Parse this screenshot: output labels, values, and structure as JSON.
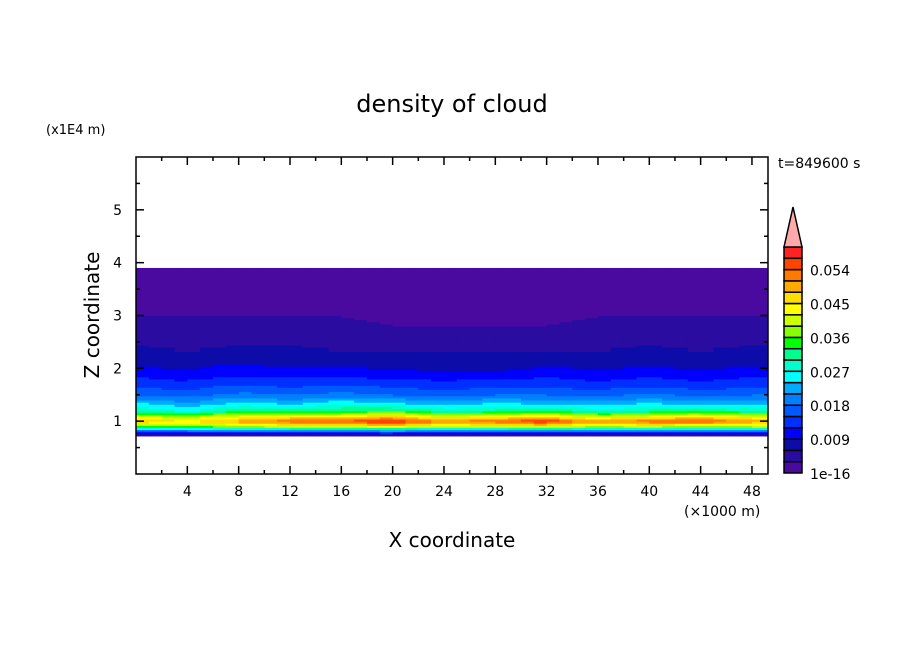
{
  "chart_data": {
    "type": "heatmap",
    "title": "density of cloud",
    "xlabel": "X coordinate",
    "ylabel": "Z coordinate",
    "x_unit": "(×1000 m)",
    "y_unit": "(x1E4 m)",
    "time_label": "t=849600 s",
    "xlim": [
      0,
      49.25
    ],
    "ylim": [
      0,
      6
    ],
    "x_ticks": [
      4,
      8,
      12,
      16,
      20,
      24,
      28,
      32,
      36,
      40,
      44,
      48
    ],
    "y_ticks": [
      1,
      2,
      3,
      4,
      5
    ],
    "colorbar": {
      "levels": [
        1e-16,
        0.003,
        0.006,
        0.009,
        0.012,
        0.015,
        0.018,
        0.021,
        0.024,
        0.027,
        0.03,
        0.033,
        0.036,
        0.039,
        0.042,
        0.045,
        0.048,
        0.051,
        0.054,
        0.057
      ],
      "tick_labels": [
        "1e-16",
        "0.009",
        "0.018",
        "0.027",
        "0.036",
        "0.045",
        "0.054"
      ],
      "tick_values": [
        0,
        0.009,
        0.018,
        0.027,
        0.036,
        0.045,
        0.054
      ],
      "colors": [
        "#4a0aa0",
        "#2a0ca0",
        "#0e0ca8",
        "#0000ff",
        "#0030ff",
        "#0058ff",
        "#0080ff",
        "#00aaff",
        "#00ffff",
        "#00ffcc",
        "#00ff90",
        "#00ff00",
        "#88ff00",
        "#ccff00",
        "#ffff00",
        "#ffdd00",
        "#ffaa00",
        "#ff7a00",
        "#ff4400",
        "#ff2222"
      ],
      "overflow_color": "#ffaaaa",
      "extend": "max"
    },
    "x": [
      0,
      4,
      8,
      12,
      16,
      20,
      24,
      28,
      32,
      36,
      40,
      44,
      48
    ],
    "z": [
      0.72,
      0.8,
      0.9,
      1.0,
      1.1,
      1.2,
      1.35,
      1.5,
      1.7,
      1.9,
      2.1,
      2.3,
      2.6,
      3.0,
      3.4,
      3.8,
      3.9
    ],
    "values": [
      [
        0.001,
        0.001,
        0.001,
        0.001,
        0.001,
        0.001,
        0.001,
        0.001,
        0.001,
        0.001,
        0.001,
        0.001,
        0.001
      ],
      [
        0.012,
        0.014,
        0.013,
        0.015,
        0.014,
        0.016,
        0.013,
        0.014,
        0.015,
        0.013,
        0.014,
        0.015,
        0.014
      ],
      [
        0.036,
        0.034,
        0.038,
        0.04,
        0.041,
        0.043,
        0.039,
        0.04,
        0.042,
        0.038,
        0.04,
        0.037,
        0.039
      ],
      [
        0.048,
        0.046,
        0.05,
        0.054,
        0.056,
        0.058,
        0.052,
        0.054,
        0.058,
        0.05,
        0.054,
        0.056,
        0.05
      ],
      [
        0.04,
        0.038,
        0.042,
        0.044,
        0.043,
        0.047,
        0.041,
        0.043,
        0.045,
        0.04,
        0.042,
        0.044,
        0.041
      ],
      [
        0.03,
        0.027,
        0.032,
        0.031,
        0.033,
        0.034,
        0.03,
        0.031,
        0.033,
        0.029,
        0.031,
        0.032,
        0.03
      ],
      [
        0.024,
        0.021,
        0.025,
        0.023,
        0.026,
        0.024,
        0.022,
        0.024,
        0.023,
        0.022,
        0.024,
        0.022,
        0.023
      ],
      [
        0.018,
        0.017,
        0.019,
        0.018,
        0.019,
        0.018,
        0.017,
        0.018,
        0.018,
        0.017,
        0.019,
        0.017,
        0.018
      ],
      [
        0.014,
        0.013,
        0.015,
        0.014,
        0.015,
        0.014,
        0.013,
        0.014,
        0.014,
        0.013,
        0.014,
        0.013,
        0.014
      ],
      [
        0.011,
        0.01,
        0.011,
        0.011,
        0.011,
        0.01,
        0.01,
        0.01,
        0.011,
        0.01,
        0.011,
        0.01,
        0.011
      ],
      [
        0.008,
        0.008,
        0.009,
        0.008,
        0.008,
        0.008,
        0.007,
        0.007,
        0.008,
        0.008,
        0.008,
        0.008,
        0.008
      ],
      [
        0.007,
        0.006,
        0.007,
        0.007,
        0.006,
        0.006,
        0.006,
        0.006,
        0.006,
        0.006,
        0.007,
        0.006,
        0.007
      ],
      [
        0.005,
        0.005,
        0.005,
        0.005,
        0.005,
        0.004,
        0.004,
        0.004,
        0.004,
        0.005,
        0.005,
        0.005,
        0.005
      ],
      [
        0.003,
        0.003,
        0.003,
        0.003,
        0.003,
        0.002,
        0.002,
        0.002,
        0.002,
        0.003,
        0.003,
        0.003,
        0.003
      ],
      [
        0.001,
        0.001,
        0.001,
        0.001,
        0.001,
        0.001,
        0.001,
        0.001,
        0.001,
        0.001,
        0.001,
        0.001,
        0.001
      ],
      [
        0.0005,
        0.0005,
        0.0005,
        0.0005,
        0.0005,
        0.0005,
        0.0005,
        0.0005,
        0.0005,
        0.0005,
        0.0005,
        0.0005,
        0.0005
      ],
      [
        0.0003,
        0.0003,
        0.0003,
        0.0003,
        0.0003,
        0.0003,
        0.0003,
        0.0003,
        0.0003,
        0.0003,
        0.0003,
        0.0003,
        0.0003
      ]
    ]
  }
}
